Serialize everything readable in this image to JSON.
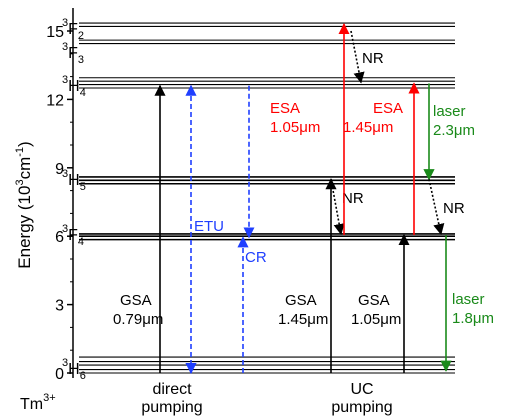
{
  "chart_data": {
    "type": "diagram",
    "ylabel": {
      "main": "Energy (10",
      "sup": "3",
      "tail": "cm",
      "sup2": "-1",
      "close": ")"
    },
    "y_range": [
      0,
      16
    ],
    "y_ticks": [
      "0",
      "3",
      "6",
      "9",
      "12",
      "15"
    ],
    "ion": {
      "main": "Tm",
      "sup": "3+"
    },
    "levels": [
      {
        "id": "3H6",
        "sup": "3",
        "main": "H",
        "sub": "6",
        "energy_lines": [
          0.0,
          0.15,
          0.35,
          0.5,
          0.7
        ]
      },
      {
        "id": "3F4",
        "sup": "3",
        "main": "F",
        "sub": "4",
        "energy_lines": [
          5.85,
          6.0,
          6.1
        ]
      },
      {
        "id": "3H5",
        "sup": "3",
        "main": "H",
        "sub": "5",
        "energy_lines": [
          8.3,
          8.45,
          8.6
        ]
      },
      {
        "id": "3H4",
        "sup": "3",
        "main": "H",
        "sub": "4",
        "energy_lines": [
          12.5,
          12.65,
          12.8,
          12.95
        ]
      },
      {
        "id": "3F3",
        "sup": "3",
        "main": "F",
        "sub": "3",
        "energy_lines": [
          14.45,
          14.6
        ]
      },
      {
        "id": "3F2",
        "sup": "3",
        "main": "F",
        "sub": "2",
        "energy_lines": [
          15.2,
          15.35
        ]
      }
    ],
    "transitions": [
      {
        "name": "gsa-079",
        "kind": "GSA",
        "from": 0,
        "to": 12.6,
        "color": "#000000",
        "style": "solid",
        "label": "GSA",
        "label2": "0.79μm"
      },
      {
        "name": "etu",
        "kind": "ETU",
        "from": 0,
        "to": 12.6,
        "color": "#1f3fff",
        "style": "dashed",
        "label": "ETU",
        "label2": ""
      },
      {
        "name": "cr",
        "kind": "CR",
        "from": 12.6,
        "to": 5.95,
        "color": "#1f3fff",
        "style": "dashed",
        "label": "CR",
        "label2": ""
      },
      {
        "name": "gsa-145",
        "kind": "GSA",
        "from": 0,
        "to": 8.5,
        "color": "#000000",
        "style": "solid",
        "label": "GSA",
        "label2": "1.45μm"
      },
      {
        "name": "nr-1",
        "kind": "NR",
        "from": 8.5,
        "to": 6.05,
        "color": "#000000",
        "style": "dotted",
        "label": "NR",
        "label2": ""
      },
      {
        "name": "esa-105",
        "kind": "ESA",
        "from": 6.05,
        "to": 15.3,
        "color": "#ff0000",
        "style": "solid",
        "label": "ESA",
        "label2": "1.05μm"
      },
      {
        "name": "nr-2",
        "kind": "NR",
        "from": 15.0,
        "to": 12.7,
        "color": "#000000",
        "style": "dotted",
        "label": "NR",
        "label2": ""
      },
      {
        "name": "gsa-105",
        "kind": "GSA",
        "from": 0,
        "to": 6.05,
        "color": "#000000",
        "style": "solid",
        "label": "GSA",
        "label2": "1.05μm"
      },
      {
        "name": "esa-145",
        "kind": "ESA",
        "from": 6.05,
        "to": 12.7,
        "color": "#ff0000",
        "style": "solid",
        "label": "ESA",
        "label2": "1.45μm"
      },
      {
        "name": "laser-23",
        "kind": "laser",
        "from": 12.7,
        "to": 8.5,
        "color": "#1a8a1a",
        "style": "solid",
        "label": "laser",
        "label2": "2.3μm"
      },
      {
        "name": "nr-3",
        "kind": "NR",
        "from": 8.5,
        "to": 6.05,
        "color": "#000000",
        "style": "dotted",
        "label": "NR",
        "label2": ""
      },
      {
        "name": "laser-18",
        "kind": "laser",
        "from": 6.05,
        "to": 0.1,
        "color": "#1a8a1a",
        "style": "solid",
        "label": "laser",
        "label2": "1.8μm"
      }
    ],
    "pumping_labels": [
      {
        "line1": "direct",
        "line2": "pumping"
      },
      {
        "line1": "UC",
        "line2": "pumping"
      }
    ]
  }
}
